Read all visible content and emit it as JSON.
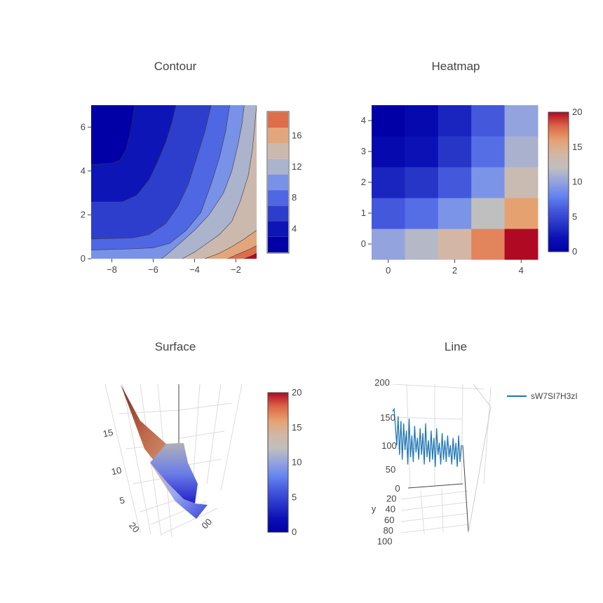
{
  "colors": {
    "scale": [
      "#0000a6",
      "#0b11b5",
      "#2836c8",
      "#4458dc",
      "#6584f0",
      "#93a3de",
      "#bfbfbf",
      "#d3b6a5",
      "#e6a171",
      "#dd6646",
      "#b00923"
    ],
    "line": "#1f77b4",
    "contour_lines": "#333333"
  },
  "chart_data": [
    {
      "type": "contour",
      "title": "Contour",
      "xlim": [
        -9,
        -1
      ],
      "ylim": [
        0,
        7
      ],
      "x_ticks": [
        "−8",
        "−6",
        "−4",
        "−2"
      ],
      "x_tick_values": [
        -8,
        -6,
        -4,
        -2
      ],
      "y_ticks": [
        "0",
        "2",
        "4",
        "6"
      ],
      "y_tick_values": [
        0,
        2,
        4,
        6
      ],
      "levels": [
        2,
        4,
        6,
        8,
        10,
        12,
        14,
        16,
        18
      ],
      "colorbar_ticks": [
        "4",
        "8",
        "12",
        "16"
      ],
      "colorbar_tick_values": [
        4,
        8,
        12,
        16
      ],
      "colorbar_range": [
        1,
        19
      ],
      "contour_boundaries": [
        [
          [
            -9,
            0.4
          ],
          [
            -7,
            0.45
          ],
          [
            -6,
            0.5
          ],
          [
            -5.2,
            0.7
          ],
          [
            -4.4,
            1.3
          ],
          [
            -3.7,
            2.1
          ],
          [
            -3.2,
            3.4
          ],
          [
            -2.8,
            4.6
          ],
          [
            -2.5,
            5.8
          ],
          [
            -2.3,
            7
          ]
        ],
        [
          [
            -9,
            0.9
          ],
          [
            -7,
            0.95
          ],
          [
            -6.2,
            1.1
          ],
          [
            -5.4,
            1.6
          ],
          [
            -4.8,
            2.4
          ],
          [
            -4.3,
            3.4
          ],
          [
            -3.9,
            4.6
          ],
          [
            -3.5,
            5.8
          ],
          [
            -3.2,
            7
          ]
        ],
        [
          [
            -9,
            2.6
          ],
          [
            -7.5,
            2.6
          ],
          [
            -6.8,
            2.9
          ],
          [
            -6.2,
            3.6
          ],
          [
            -5.8,
            4.4
          ],
          [
            -5.4,
            5.3
          ],
          [
            -5.1,
            6.2
          ],
          [
            -4.9,
            7
          ]
        ],
        [
          [
            -9,
            4.3
          ],
          [
            -8,
            4.35
          ],
          [
            -7.6,
            4.5
          ],
          [
            -7.3,
            5
          ],
          [
            -7.1,
            5.8
          ],
          [
            -6.9,
            7
          ]
        ],
        [
          [
            -5.6,
            0
          ],
          [
            -5.2,
            0.3
          ],
          [
            -4.6,
            0.8
          ],
          [
            -4,
            1.3
          ],
          [
            -3.3,
            2
          ],
          [
            -2.6,
            3
          ],
          [
            -2.2,
            4
          ],
          [
            -1.9,
            5.2
          ],
          [
            -1.7,
            6.2
          ],
          [
            -1.6,
            7
          ]
        ],
        [
          [
            -4.6,
            0
          ],
          [
            -4,
            0.3
          ],
          [
            -3.4,
            0.7
          ],
          [
            -2.8,
            1.1
          ],
          [
            -2.2,
            1.7
          ],
          [
            -1.8,
            2.6
          ],
          [
            -1.4,
            3.8
          ],
          [
            -1.2,
            5
          ],
          [
            -1.1,
            6
          ],
          [
            -1,
            7
          ]
        ],
        [
          [
            -3.5,
            0
          ],
          [
            -2.8,
            0.25
          ],
          [
            -2.2,
            0.55
          ],
          [
            -1.6,
            0.9
          ],
          [
            -1,
            1.3
          ]
        ],
        [
          [
            -2.4,
            0
          ],
          [
            -1.8,
            0.25
          ],
          [
            -1.3,
            0.45
          ],
          [
            -1,
            0.6
          ]
        ],
        [
          [
            -1.6,
            0
          ],
          [
            -1.2,
            0.15
          ],
          [
            -1,
            0.25
          ]
        ]
      ]
    },
    {
      "type": "heatmap",
      "title": "Heatmap",
      "x_ticks": [
        "0",
        "2",
        "4"
      ],
      "x_tick_values": [
        0,
        2,
        4
      ],
      "y_ticks": [
        "0",
        "1",
        "2",
        "3",
        "4"
      ],
      "y_tick_values": [
        0,
        1,
        2,
        3,
        4
      ],
      "z": [
        [
          10,
          11.5,
          14,
          17,
          20
        ],
        [
          6,
          7,
          9,
          12,
          16
        ],
        [
          3,
          4,
          6,
          9,
          13
        ],
        [
          1,
          2,
          4,
          7,
          11
        ],
        [
          0,
          1,
          3,
          6,
          10
        ]
      ],
      "zlim": [
        0,
        20
      ],
      "colorbar_ticks": [
        "0",
        "5",
        "10",
        "15",
        "20"
      ],
      "colorbar_tick_values": [
        0,
        5,
        10,
        15,
        20
      ]
    },
    {
      "type": "surface",
      "title": "Surface",
      "z_ticks": [
        "5",
        "10",
        "15"
      ],
      "axis_fragments": [
        "20",
        "00"
      ],
      "zlim": [
        0,
        20
      ],
      "colorbar_ticks": [
        "0",
        "5",
        "10",
        "15",
        "20"
      ],
      "colorbar_tick_values": [
        0,
        5,
        10,
        15,
        20
      ]
    },
    {
      "type": "line",
      "title": "Line",
      "series": [
        {
          "name": "sW7SI7H3zI",
          "values": [
            150,
            155,
            120,
            80,
            140,
            60,
            130,
            50,
            125,
            70,
            110,
            40,
            135,
            55,
            100,
            45,
            120,
            65,
            95,
            50,
            115,
            60,
            105,
            40,
            125,
            55,
            90,
            45,
            110,
            50,
            95,
            35,
            115,
            60,
            85,
            40,
            105,
            50,
            90,
            45,
            100,
            55,
            80,
            40,
            95,
            50,
            85,
            35,
            100,
            45,
            80
          ]
        }
      ],
      "z_ticks": [
        "0",
        "50",
        "100",
        "150",
        "200"
      ],
      "y_axis_label": "y",
      "y_ticks": [
        "0",
        "20",
        "40",
        "60",
        "80",
        "100"
      ]
    }
  ]
}
